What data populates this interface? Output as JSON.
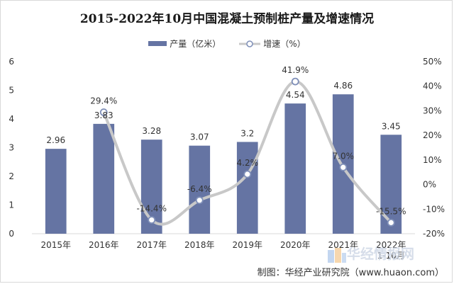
{
  "title": "2015-2022年10月中国混凝土预制桩产量及增速情况",
  "footer": "制图：华经产业研究院（www.huaon.com）",
  "watermark": "华经情报网",
  "colors": {
    "bar": "#6574a3",
    "line": "#c8c8c8",
    "marker_stroke": "#7f8fb8",
    "axis": "#d9d9d9"
  },
  "chart_data": {
    "type": "bar",
    "categories": [
      "2015年",
      "2016年",
      "2017年",
      "2018年",
      "2019年",
      "2020年",
      "2021年",
      "2022年\n1-10月"
    ],
    "series": [
      {
        "name": "产量（亿米）",
        "type": "bar",
        "axis": "left",
        "values": [
          2.96,
          3.83,
          3.28,
          3.07,
          3.2,
          4.54,
          4.86,
          3.45
        ],
        "labels": [
          "2.96",
          "3.83",
          "3.28",
          "3.07",
          "3.2",
          "4.54",
          "4.86",
          "3.45"
        ]
      },
      {
        "name": "增速（%）",
        "type": "line",
        "smooth": true,
        "axis": "right",
        "values": [
          null,
          29.4,
          -14.4,
          -6.4,
          4.2,
          41.9,
          7.0,
          -15.5
        ],
        "labels": [
          "",
          "29.4%",
          "-14.4%",
          "-6.4%",
          "4.2%",
          "41.9%",
          "7.0%",
          "-15.5%"
        ]
      }
    ],
    "y_left": {
      "min": 0,
      "max": 6,
      "ticks": [
        "0",
        "1",
        "2",
        "3",
        "4",
        "5",
        "6"
      ]
    },
    "y_right": {
      "min": -20,
      "max": 50,
      "ticks": [
        "-20%",
        "-10%",
        "0%",
        "10%",
        "20%",
        "30%",
        "40%",
        "50%"
      ]
    },
    "legend": "top",
    "grid": false
  }
}
